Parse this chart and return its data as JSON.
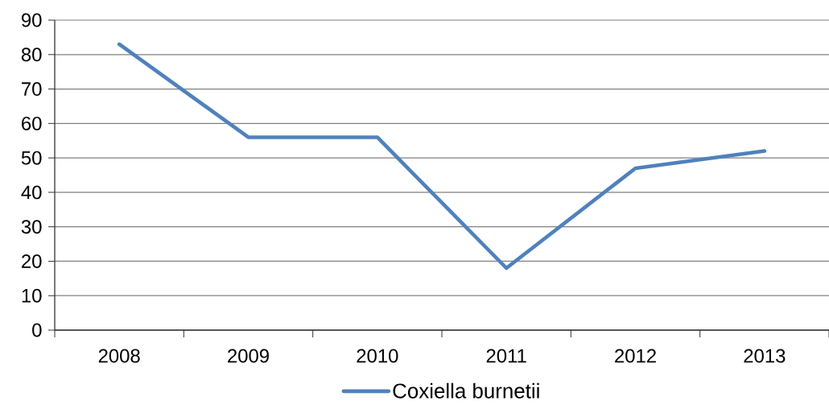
{
  "chart_data": {
    "type": "line",
    "categories": [
      "2008",
      "2009",
      "2010",
      "2011",
      "2012",
      "2013"
    ],
    "series": [
      {
        "name": "Coxiella burnetii",
        "color": "#4f81bd",
        "values": [
          83,
          56,
          56,
          18,
          47,
          52
        ]
      }
    ],
    "ylim": [
      0,
      90
    ],
    "yticks": [
      0,
      10,
      20,
      30,
      40,
      50,
      60,
      70,
      80,
      90
    ],
    "grid": "y",
    "legend": "bottom",
    "marker": "none",
    "line_style": "solid"
  }
}
